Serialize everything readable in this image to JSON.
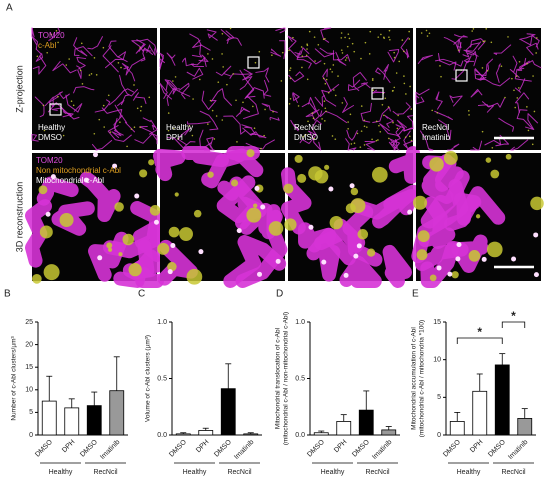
{
  "panel_a": {
    "label": "A",
    "rows": [
      "Z-projection",
      "3D reconstruction"
    ],
    "legend_top": [
      "TOM20",
      "c-Abl"
    ],
    "legend_bottom": [
      "TOM20",
      "Non mitochondrial c-Abl",
      "Mitochondrial c-Abl"
    ],
    "conditions": [
      [
        "Healthy",
        "DMSO"
      ],
      [
        "Healthy",
        "DPH"
      ],
      [
        "RecNcil",
        "DMSO"
      ],
      [
        "RecNcil",
        "Imatinib"
      ]
    ]
  },
  "chart_data": [
    {
      "type": "bar",
      "panel": "B",
      "y_label": [
        "Number of c-Abl clusters/µm³"
      ],
      "categories": [
        "DMSO",
        "DPH",
        "DMSO",
        "Imatinib"
      ],
      "groups": [
        "Healthy",
        "RecNcil"
      ],
      "values": [
        7.5,
        6,
        6.5,
        9.8
      ],
      "errors": [
        5.5,
        2,
        3,
        7.5
      ],
      "colors": [
        "#ffffff",
        "#ffffff",
        "#000000",
        "#999999"
      ],
      "ylim": [
        0,
        25
      ],
      "yticks": [
        0,
        5,
        10,
        15,
        20,
        25
      ]
    },
    {
      "type": "bar",
      "panel": "C",
      "y_label": [
        "Volume of c-Abl clusters (µm³)"
      ],
      "categories": [
        "DMSO",
        "DPH",
        "DMSO",
        "Imatinib"
      ],
      "groups": [
        "Healthy",
        "RecNcil"
      ],
      "values": [
        0.01,
        0.04,
        0.41,
        0.01
      ],
      "errors": [
        0.01,
        0.02,
        0.22,
        0.01
      ],
      "colors": [
        "#ffffff",
        "#ffffff",
        "#000000",
        "#999999"
      ],
      "ylim": [
        0,
        1
      ],
      "yticks": [
        {
          "value": 0,
          "label": "0.0"
        },
        {
          "value": 0.5,
          "label": "0.5"
        },
        {
          "value": 1,
          "label": "1.0"
        }
      ]
    },
    {
      "type": "bar",
      "panel": "D",
      "y_label": [
        "Mitochondrial translocation of c-Abl",
        "(mitochondrial c-Abl / non-mitochondrial c-Abl)"
      ],
      "categories": [
        "DMSO",
        "DPH",
        "DMSO",
        "Imatinib"
      ],
      "groups": [
        "Healthy",
        "RecNcil"
      ],
      "values": [
        0.02,
        0.12,
        0.22,
        0.045
      ],
      "errors": [
        0.015,
        0.06,
        0.17,
        0.03
      ],
      "colors": [
        "#ffffff",
        "#ffffff",
        "#000000",
        "#999999"
      ],
      "ylim": [
        0,
        1
      ],
      "yticks": [
        {
          "value": 0,
          "label": "0.0"
        },
        {
          "value": 0.5,
          "label": "0.5"
        },
        {
          "value": 1,
          "label": "1.0"
        }
      ]
    },
    {
      "type": "bar",
      "panel": "E",
      "y_label": [
        "Mitochondrial accumulation of c-Abl",
        "(mitochondrial c-Abl / mitochondria *100)"
      ],
      "categories": [
        "DMSO",
        "DPH",
        "DMSO",
        "Imatinib"
      ],
      "groups": [
        "Healthy",
        "RecNcil"
      ],
      "values": [
        1.8,
        5.8,
        9.3,
        2.2
      ],
      "errors": [
        1.2,
        2.3,
        1.5,
        1.3
      ],
      "colors": [
        "#ffffff",
        "#ffffff",
        "#000000",
        "#999999"
      ],
      "ylim": [
        0,
        15
      ],
      "yticks": [
        0,
        5,
        10,
        15
      ],
      "annotations": [
        "*",
        "*"
      ]
    }
  ]
}
